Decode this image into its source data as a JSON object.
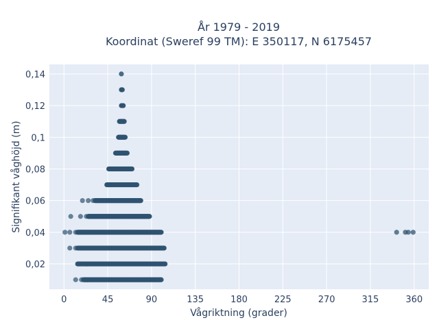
{
  "chart_data": {
    "type": "scatter",
    "title_line1": "År 1979 - 2019",
    "title_line2": "Koordinat (Sweref 99 TM): E 350117, N 6175457",
    "xlabel": "Vågriktning (grader)",
    "ylabel": "Signifikant våghöjd (m)",
    "xlim": [
      -15,
      375
    ],
    "ylim": [
      0.004,
      0.146
    ],
    "x_ticks": [
      0,
      45,
      90,
      135,
      180,
      225,
      270,
      315,
      360
    ],
    "x_tick_labels": [
      "0",
      "45",
      "90",
      "135",
      "180",
      "225",
      "270",
      "315",
      "360"
    ],
    "y_ticks": [
      0.02,
      0.04,
      0.06,
      0.08,
      0.1,
      0.12,
      0.14
    ],
    "y_tick_labels": [
      "0,02",
      "0,04",
      "0,06",
      "0,08",
      "0,1",
      "0,12",
      "0,14"
    ],
    "grid": true,
    "marker_color": "#2f5470",
    "plot_background": "#e5ecf6",
    "bands": [
      {
        "y": 0.01,
        "x_min": 12,
        "x_max": 100,
        "sparse": [
          12,
          18
        ]
      },
      {
        "y": 0.02,
        "x_min": 14,
        "x_max": 104,
        "sparse": []
      },
      {
        "y": 0.03,
        "x_min": 6,
        "x_max": 103,
        "sparse": [
          6,
          12
        ]
      },
      {
        "y": 0.04,
        "x_min": 1,
        "x_max": 100,
        "sparse": [
          1,
          6,
          12
        ]
      },
      {
        "y": 0.05,
        "x_min": 7,
        "x_max": 88,
        "sparse": [
          7,
          17,
          23
        ]
      },
      {
        "y": 0.06,
        "x_min": 19,
        "x_max": 79,
        "sparse": [
          19,
          25,
          30
        ]
      },
      {
        "y": 0.07,
        "x_min": 44,
        "x_max": 75,
        "sparse": []
      },
      {
        "y": 0.08,
        "x_min": 46,
        "x_max": 70,
        "sparse": []
      },
      {
        "y": 0.09,
        "x_min": 53,
        "x_max": 65,
        "sparse": []
      },
      {
        "y": 0.1,
        "x_min": 56,
        "x_max": 63,
        "sparse": []
      },
      {
        "y": 0.11,
        "x_min": 57,
        "x_max": 62,
        "sparse": []
      },
      {
        "y": 0.12,
        "x_min": 59,
        "x_max": 61,
        "sparse": []
      },
      {
        "y": 0.13,
        "x_min": 59,
        "x_max": 60,
        "sparse": []
      },
      {
        "y": 0.14,
        "x_min": 59,
        "x_max": 59,
        "sparse": []
      }
    ],
    "outliers": [
      {
        "x": 342,
        "y": 0.04
      },
      {
        "x": 351,
        "y": 0.04
      },
      {
        "x": 354,
        "y": 0.04
      },
      {
        "x": 359,
        "y": 0.04
      }
    ]
  }
}
